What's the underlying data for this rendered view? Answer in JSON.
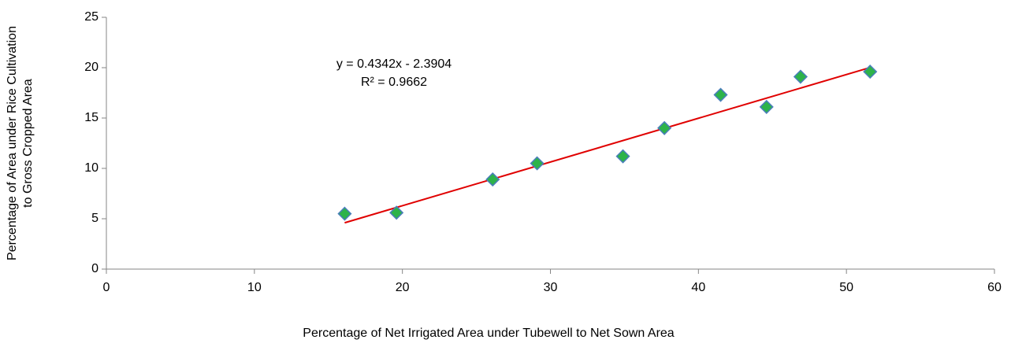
{
  "chart_data": {
    "type": "scatter",
    "xlabel": "Percentage of Net Irrigated Area under Tubewell to Net Sown Area",
    "ylabel": [
      "Percentage of Area under Rice Cultivation",
      "to Gross Cropped Area"
    ],
    "series": [
      {
        "color": "#2db34a",
        "edge_color": "#4a7ebb",
        "x": [
          16.1,
          19.6,
          26.1,
          29.1,
          34.9,
          37.7,
          41.5,
          44.6,
          46.9,
          51.6
        ],
        "values": [
          5.5,
          5.6,
          8.9,
          10.5,
          11.2,
          14.0,
          17.3,
          16.1,
          19.1,
          19.6
        ]
      }
    ],
    "trendline": {
      "slope": 0.4342,
      "intercept": -2.3904,
      "color": "#e00000",
      "label": "y = 0.4342x - 2.3904",
      "r2": 0.9662,
      "r2_label": "R² = 0.9662"
    },
    "xlim": [
      0,
      60
    ],
    "xticks": [
      0,
      10,
      20,
      30,
      40,
      50,
      60
    ],
    "ylim": [
      0,
      25
    ],
    "yticks": [
      0,
      5,
      10,
      15,
      20,
      25
    ],
    "grid": false
  }
}
